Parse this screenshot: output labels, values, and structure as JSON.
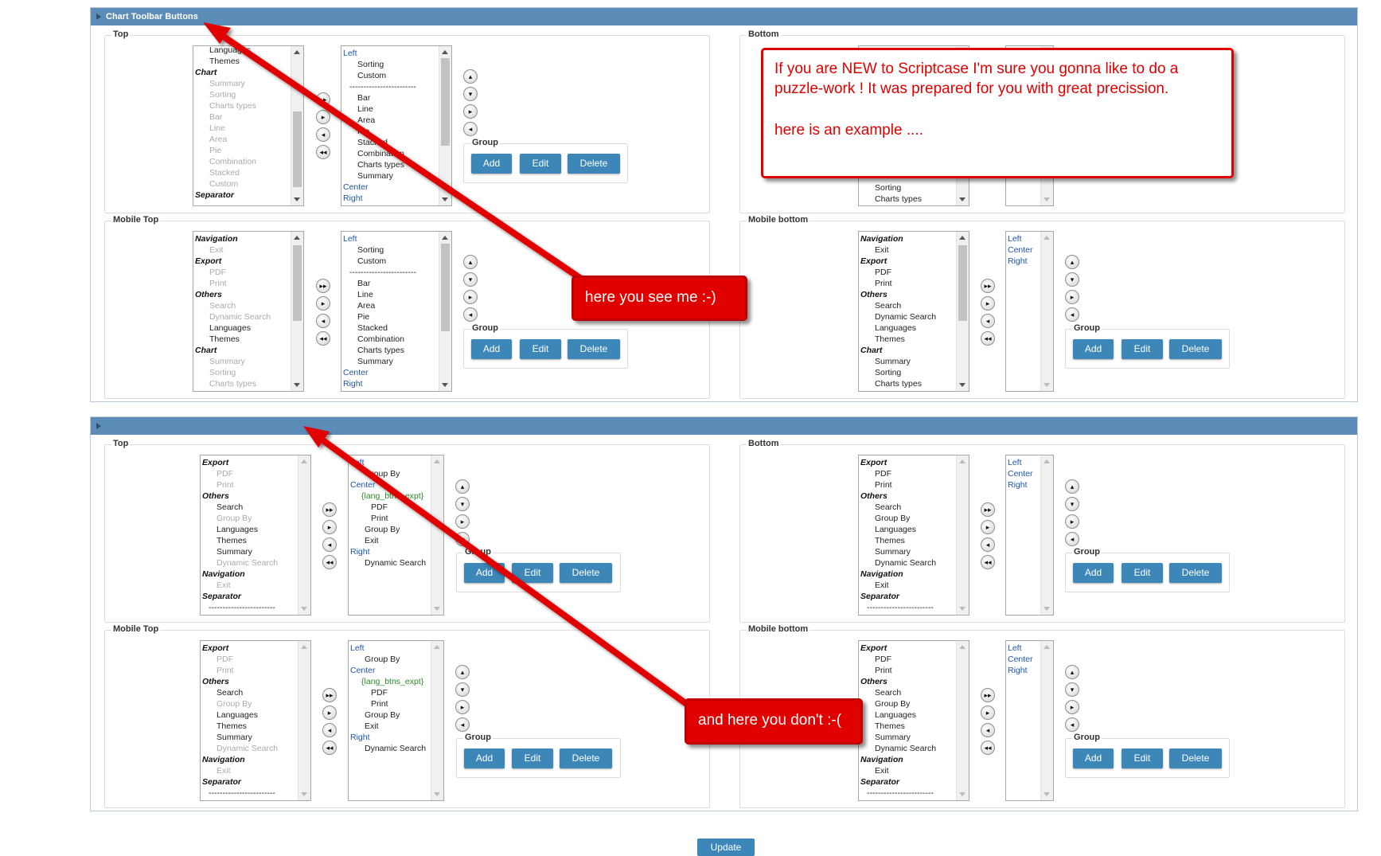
{
  "top_panel": {
    "title": "Chart Toolbar Buttons",
    "sections": {
      "top": {
        "legend": "Top",
        "group_legend": "Group",
        "add": "Add",
        "edit": "Edit",
        "delete": "Delete"
      },
      "bottom": {
        "legend": "Bottom"
      },
      "mobile_top": {
        "legend": "Mobile Top",
        "group_legend": "Group",
        "add": "Add",
        "edit": "Edit",
        "delete": "Delete"
      },
      "mobile_bottom": {
        "legend": "Mobile bottom",
        "group_legend": "Group",
        "add": "Add",
        "edit": "Edit",
        "delete": "Delete"
      }
    },
    "lists": {
      "top_available": [
        {
          "t": "Languages",
          "k": "n"
        },
        {
          "t": "Themes",
          "k": "n"
        },
        {
          "t": "Chart",
          "k": "g"
        },
        {
          "t": "Summary",
          "k": "d"
        },
        {
          "t": "Sorting",
          "k": "d"
        },
        {
          "t": "Charts types",
          "k": "d"
        },
        {
          "t": "Bar",
          "k": "d"
        },
        {
          "t": "Line",
          "k": "d"
        },
        {
          "t": "Area",
          "k": "d"
        },
        {
          "t": "Pie",
          "k": "d"
        },
        {
          "t": "Combination",
          "k": "d"
        },
        {
          "t": "Stacked",
          "k": "d"
        },
        {
          "t": "Custom",
          "k": "d"
        },
        {
          "t": "Separator",
          "k": "g"
        }
      ],
      "top_selected": [
        {
          "t": "Left",
          "k": "b"
        },
        {
          "t": "Sorting",
          "k": "n"
        },
        {
          "t": "Custom",
          "k": "n"
        },
        {
          "t": "------------------------",
          "k": "n"
        },
        {
          "t": "Bar",
          "k": "n"
        },
        {
          "t": "Line",
          "k": "n"
        },
        {
          "t": "Area",
          "k": "n"
        },
        {
          "t": "Pie",
          "k": "n"
        },
        {
          "t": "Stacked",
          "k": "n"
        },
        {
          "t": "Combination",
          "k": "n"
        },
        {
          "t": "Charts types",
          "k": "n"
        },
        {
          "t": "Summary",
          "k": "n"
        },
        {
          "t": "Center",
          "k": "b"
        },
        {
          "t": "Right",
          "k": "b"
        }
      ],
      "bottom_available_partial": [
        {
          "t": "Sorting",
          "k": "n"
        },
        {
          "t": "Charts types",
          "k": "n"
        }
      ],
      "mobile_top_available": [
        {
          "t": "Navigation",
          "k": "g"
        },
        {
          "t": "Exit",
          "k": "d"
        },
        {
          "t": "Export",
          "k": "g"
        },
        {
          "t": "PDF",
          "k": "d"
        },
        {
          "t": "Print",
          "k": "d"
        },
        {
          "t": "Others",
          "k": "g"
        },
        {
          "t": "Search",
          "k": "d"
        },
        {
          "t": "Dynamic Search",
          "k": "d"
        },
        {
          "t": "Languages",
          "k": "n"
        },
        {
          "t": "Themes",
          "k": "n"
        },
        {
          "t": "Chart",
          "k": "g"
        },
        {
          "t": "Summary",
          "k": "d"
        },
        {
          "t": "Sorting",
          "k": "d"
        },
        {
          "t": "Charts types",
          "k": "d"
        }
      ],
      "mobile_top_selected": [
        {
          "t": "Left",
          "k": "b"
        },
        {
          "t": "Sorting",
          "k": "n"
        },
        {
          "t": "Custom",
          "k": "n"
        },
        {
          "t": "------------------------",
          "k": "n"
        },
        {
          "t": "Bar",
          "k": "n"
        },
        {
          "t": "Line",
          "k": "n"
        },
        {
          "t": "Area",
          "k": "n"
        },
        {
          "t": "Pie",
          "k": "n"
        },
        {
          "t": "Stacked",
          "k": "n"
        },
        {
          "t": "Combination",
          "k": "n"
        },
        {
          "t": "Charts types",
          "k": "n"
        },
        {
          "t": "Summary",
          "k": "n"
        },
        {
          "t": "Center",
          "k": "b"
        },
        {
          "t": "Right",
          "k": "b"
        }
      ],
      "mobile_bottom_available": [
        {
          "t": "Navigation",
          "k": "g"
        },
        {
          "t": "Exit",
          "k": "n"
        },
        {
          "t": "Export",
          "k": "g"
        },
        {
          "t": "PDF",
          "k": "n"
        },
        {
          "t": "Print",
          "k": "n"
        },
        {
          "t": "Others",
          "k": "g"
        },
        {
          "t": "Search",
          "k": "n"
        },
        {
          "t": "Dynamic Search",
          "k": "n"
        },
        {
          "t": "Languages",
          "k": "n"
        },
        {
          "t": "Themes",
          "k": "n"
        },
        {
          "t": "Chart",
          "k": "g"
        },
        {
          "t": "Summary",
          "k": "n"
        },
        {
          "t": "Sorting",
          "k": "n"
        },
        {
          "t": "Charts types",
          "k": "n"
        }
      ],
      "mobile_bottom_selected": [
        {
          "t": "Left",
          "k": "b"
        },
        {
          "t": "Center",
          "k": "b"
        },
        {
          "t": "Right",
          "k": "b"
        }
      ]
    }
  },
  "bottom_panel": {
    "title": "",
    "sections": {
      "top": {
        "legend": "Top",
        "group_legend": "Group",
        "add": "Add",
        "edit": "Edit",
        "delete": "Delete"
      },
      "bottom": {
        "legend": "Bottom",
        "group_legend": "Group",
        "add": "Add",
        "edit": "Edit",
        "delete": "Delete"
      },
      "mobile_top": {
        "legend": "Mobile Top",
        "group_legend": "Group",
        "add": "Add",
        "edit": "Edit",
        "delete": "Delete"
      },
      "mobile_bottom": {
        "legend": "Mobile bottom",
        "group_legend": "Group",
        "add": "Add",
        "edit": "Edit",
        "delete": "Delete"
      }
    },
    "lists": {
      "available": [
        {
          "t": "Export",
          "k": "g"
        },
        {
          "t": "PDF",
          "k": "d"
        },
        {
          "t": "Print",
          "k": "d"
        },
        {
          "t": "Others",
          "k": "g"
        },
        {
          "t": "Search",
          "k": "n"
        },
        {
          "t": "Group By",
          "k": "d"
        },
        {
          "t": "Languages",
          "k": "n"
        },
        {
          "t": "Themes",
          "k": "n"
        },
        {
          "t": "Summary",
          "k": "n"
        },
        {
          "t": "Dynamic Search",
          "k": "d"
        },
        {
          "t": "Navigation",
          "k": "g"
        },
        {
          "t": "Exit",
          "k": "d"
        },
        {
          "t": "Separator",
          "k": "g"
        },
        {
          "t": "------------------------",
          "k": "n"
        }
      ],
      "selected": [
        {
          "t": "Left",
          "k": "b"
        },
        {
          "t": "Group By",
          "k": "n"
        },
        {
          "t": "Center",
          "k": "b"
        },
        {
          "t": "{lang_btns_expt}",
          "k": "gr"
        },
        {
          "t": "PDF",
          "k": "n2"
        },
        {
          "t": "Print",
          "k": "n2"
        },
        {
          "t": "Group By",
          "k": "n"
        },
        {
          "t": "Exit",
          "k": "n"
        },
        {
          "t": "Right",
          "k": "b"
        },
        {
          "t": "Dynamic Search",
          "k": "n"
        }
      ],
      "bottom_available": [
        {
          "t": "Export",
          "k": "g"
        },
        {
          "t": "PDF",
          "k": "n"
        },
        {
          "t": "Print",
          "k": "n"
        },
        {
          "t": "Others",
          "k": "g"
        },
        {
          "t": "Search",
          "k": "n"
        },
        {
          "t": "Group By",
          "k": "n"
        },
        {
          "t": "Languages",
          "k": "n"
        },
        {
          "t": "Themes",
          "k": "n"
        },
        {
          "t": "Summary",
          "k": "n"
        },
        {
          "t": "Dynamic Search",
          "k": "n"
        },
        {
          "t": "Navigation",
          "k": "g"
        },
        {
          "t": "Exit",
          "k": "n"
        },
        {
          "t": "Separator",
          "k": "g"
        },
        {
          "t": "------------------------",
          "k": "n"
        }
      ],
      "bottom_selected": [
        {
          "t": "Left",
          "k": "b"
        },
        {
          "t": "Center",
          "k": "b"
        },
        {
          "t": "Right",
          "k": "b"
        }
      ]
    }
  },
  "annotations": {
    "intro_line1": "If you are NEW to Scriptcase I'm sure you gonna like to do a",
    "intro_line2": "puzzle-work !  It was prepared for you with great precission.",
    "intro_line3": "here is an example ....",
    "see_me": "here you see me :-)",
    "dont_see": "and here you don't :-("
  },
  "colors": {
    "arrow": "#e00000",
    "header": "#5b8db8",
    "button": "#3c87b8"
  },
  "update_label": "Update"
}
